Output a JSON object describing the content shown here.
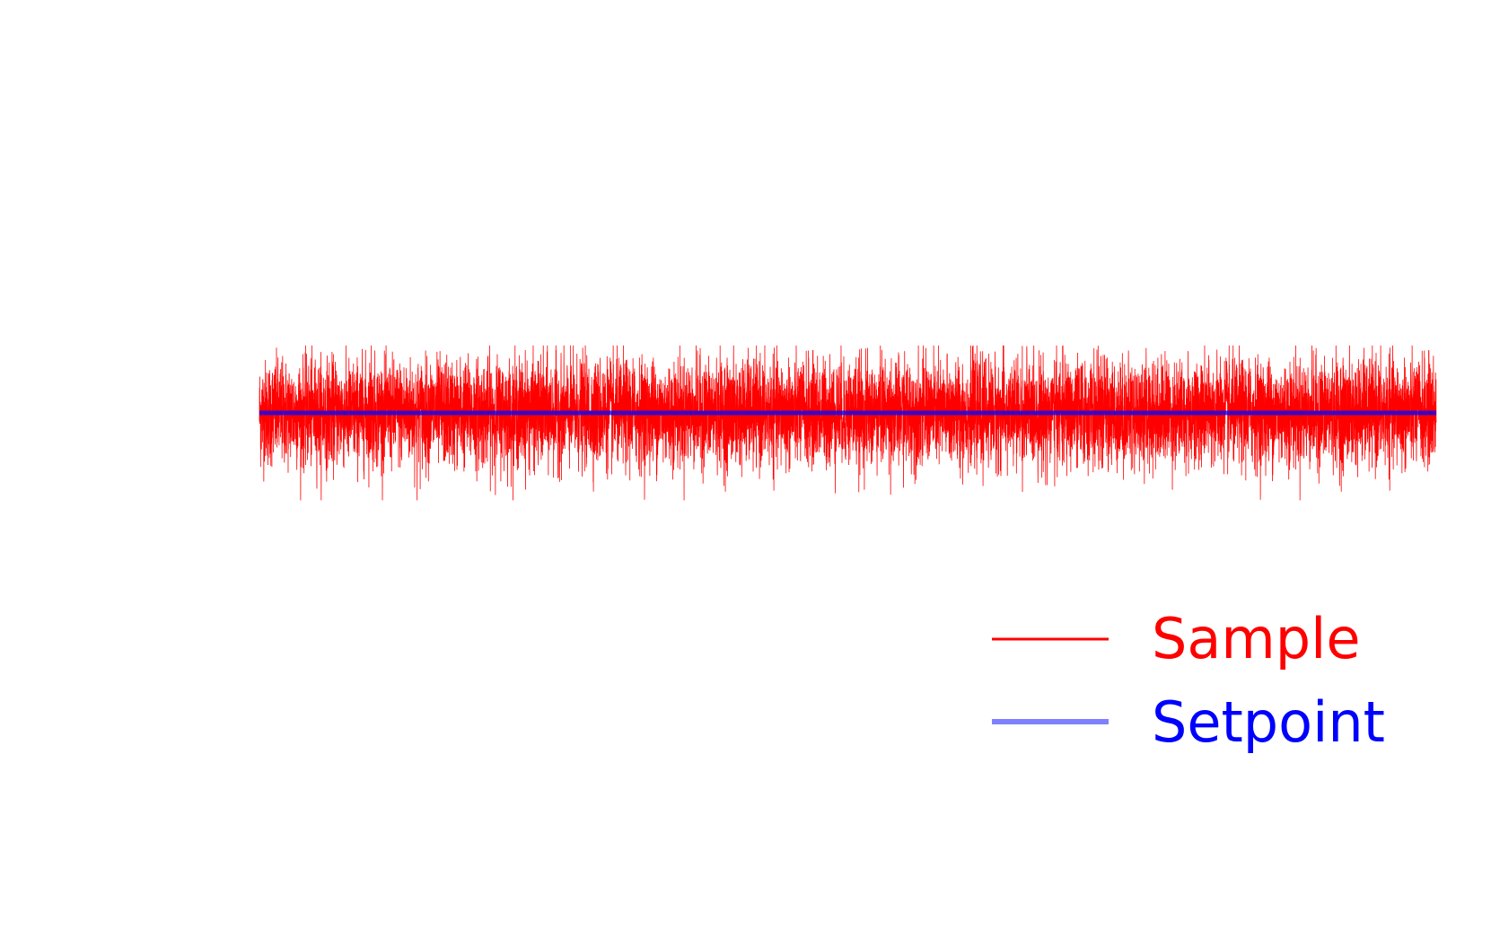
{
  "chart_data": {
    "type": "line",
    "title": "",
    "xlabel": "",
    "ylabel": "",
    "axes_visible": false,
    "grid": false,
    "legend_position": "bottom-right",
    "x_range": [
      0,
      10000
    ],
    "y_range": [
      -6,
      6
    ],
    "series": [
      {
        "name": "Sample",
        "color": "#ff0000",
        "kind": "noisy-signal",
        "points": 10000,
        "mean": 0,
        "std": 0.38,
        "max": 0.98,
        "min": -1.27
      },
      {
        "name": "Setpoint",
        "color": "#0000ff",
        "legend_color": "#8080ff",
        "kind": "constant",
        "value": 0
      }
    ]
  }
}
